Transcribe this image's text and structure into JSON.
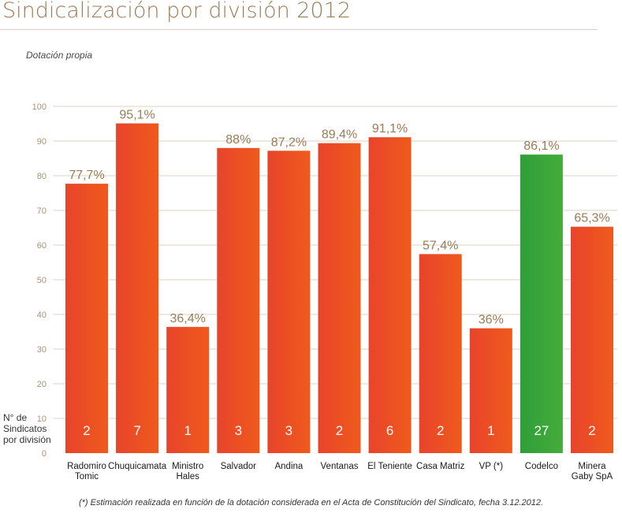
{
  "title": "Sindicalización por división 2012",
  "footnote": "(*) Estimación realizada en función de la dotación considerada en el Acta de Constitución del Sindicato, fecha 3.12.2012.",
  "colors": {
    "bar_main": "#e8442c",
    "bar_main_end": "#ef5a1c",
    "bar_highlight": "#2f9d3a",
    "bar_highlight_end": "#44ad3a",
    "value_label": "#9b7b54",
    "gridline": "#d8d2c6",
    "axis_tick": "#a99376",
    "count_text": "#ffffff",
    "category_text": "#1a1a1a"
  },
  "chart_data": {
    "type": "bar",
    "ylabel": "Dotación propia",
    "ylim": [
      0,
      100
    ],
    "yticks": [
      "0",
      "10",
      "20",
      "30",
      "40",
      "50",
      "60",
      "70",
      "80",
      "90",
      "100"
    ],
    "grid": true,
    "categories": [
      [
        "Radomiro",
        "Tomic"
      ],
      [
        "Chuquicamata"
      ],
      [
        "Ministro",
        "Hales"
      ],
      [
        "Salvador"
      ],
      [
        "Andina"
      ],
      [
        "Ventanas"
      ],
      [
        "El Teniente"
      ],
      [
        "Casa Matriz"
      ],
      [
        "VP (*)"
      ],
      [
        "Codelco"
      ],
      [
        "Minera",
        "Gaby SpA"
      ]
    ],
    "values": [
      77.7,
      95.1,
      36.4,
      88,
      87.2,
      89.4,
      91.1,
      57.4,
      36,
      86.1,
      65.3
    ],
    "value_labels": [
      "77,7%",
      "95,1%",
      "36,4%",
      "88%",
      "87,2%",
      "89,4%",
      "91,1%",
      "57,4%",
      "36%",
      "86,1%",
      "65,3%"
    ],
    "highlight_index": 9,
    "count_label": [
      "N° de",
      "Sindicatos",
      "por división"
    ],
    "sindicatos": [
      "2",
      "7",
      "1",
      "3",
      "3",
      "2",
      "6",
      "2",
      "1",
      "27",
      "2"
    ]
  }
}
